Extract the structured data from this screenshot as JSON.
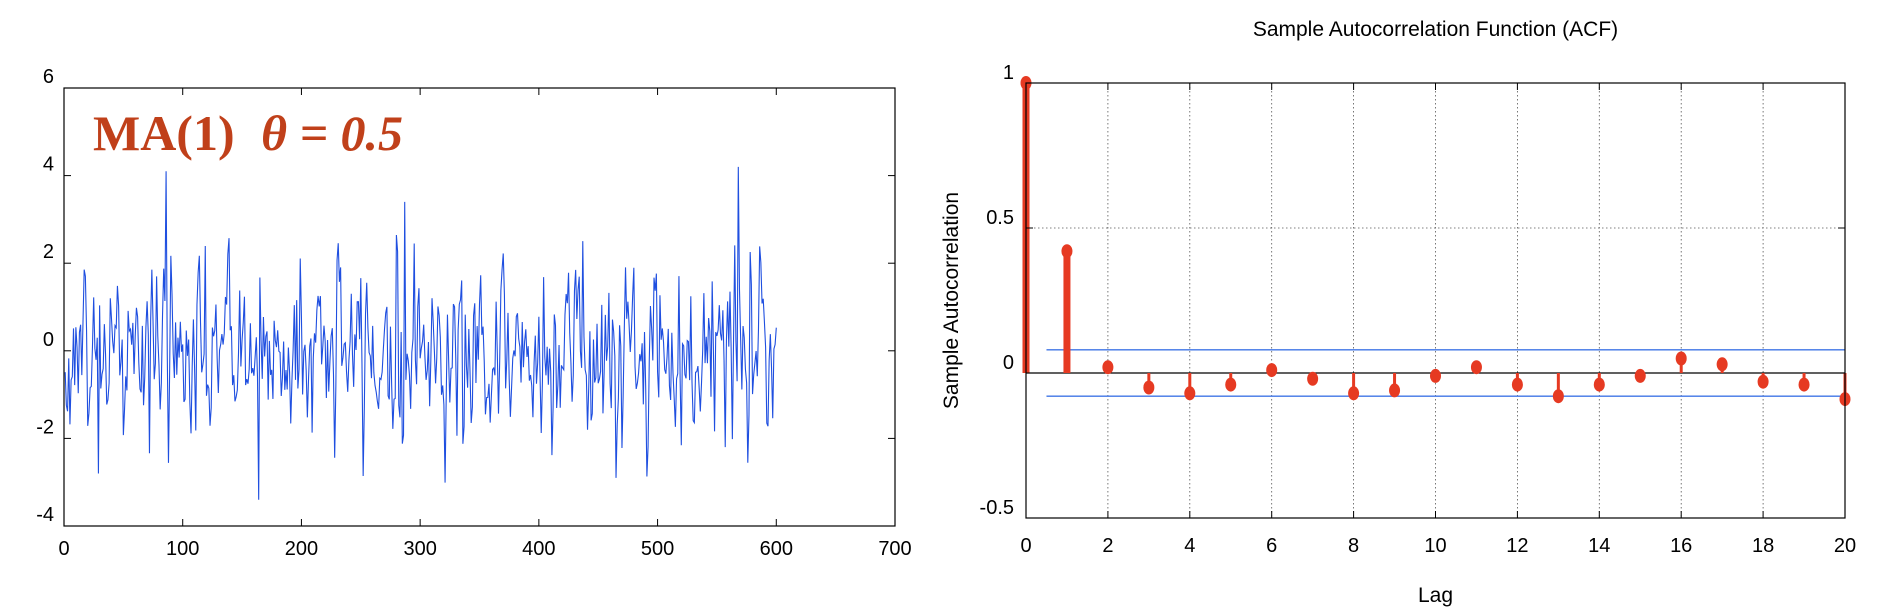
{
  "chart_data": [
    {
      "type": "line",
      "title": "",
      "xlabel": "",
      "ylabel": "",
      "xlim": [
        0,
        700
      ],
      "ylim": [
        -4,
        6
      ],
      "xticks": [
        0,
        100,
        200,
        300,
        400,
        500,
        600,
        700
      ],
      "xtick_labels": [
        "0",
        "100",
        "200",
        "300",
        "400",
        "500",
        "600",
        "700"
      ],
      "yticks": [
        -4,
        -2,
        0,
        2,
        4,
        6
      ],
      "ytick_labels": [
        "-4",
        "-2",
        "0",
        "2",
        "4",
        "6"
      ],
      "annotation": {
        "prefix": "MA(1)",
        "symbol": "θ",
        "suffix": "= 0.5"
      },
      "annotation_color": "#c0401a",
      "grid": false,
      "series": [
        {
          "color": "#1f4fe0",
          "n_points": 600,
          "y_range": [
            -3.4,
            4.2
          ],
          "peaks": [
            {
              "x": 86,
              "y": 4.1
            },
            {
              "x": 568,
              "y": 4.2
            },
            {
              "x": 287,
              "y": 3.4
            },
            {
              "x": 164,
              "y": -3.4
            },
            {
              "x": 465,
              "y": -2.9
            },
            {
              "x": 29,
              "y": -2.8
            }
          ]
        }
      ]
    },
    {
      "type": "stem",
      "title": "Sample Autocorrelation Function (ACF)",
      "xlabel": "Lag",
      "ylabel": "Sample Autocorrelation",
      "xlim": [
        0,
        20
      ],
      "ylim": [
        -0.5,
        1
      ],
      "xticks": [
        0,
        2,
        4,
        6,
        8,
        10,
        12,
        14,
        16,
        18,
        20
      ],
      "xtick_labels": [
        "0",
        "2",
        "4",
        "6",
        "8",
        "10",
        "12",
        "14",
        "16",
        "18",
        "20"
      ],
      "yticks": [
        -0.5,
        0,
        0.5,
        1
      ],
      "ytick_labels": [
        "-0.5",
        "0",
        "0.5",
        "1"
      ],
      "grid": true,
      "stem_color": "#e63a22",
      "bound_color": "#3f74e6",
      "confidence_bounds": [
        0.08,
        -0.08
      ],
      "x": [
        0,
        1,
        2,
        3,
        4,
        5,
        6,
        7,
        8,
        9,
        10,
        11,
        12,
        13,
        14,
        15,
        16,
        17,
        18,
        19,
        20
      ],
      "values": [
        1.0,
        0.42,
        0.02,
        -0.05,
        -0.07,
        -0.04,
        0.01,
        -0.02,
        -0.07,
        -0.06,
        -0.01,
        0.02,
        -0.04,
        -0.08,
        -0.04,
        -0.01,
        0.05,
        0.03,
        -0.03,
        -0.04,
        -0.09
      ]
    }
  ]
}
